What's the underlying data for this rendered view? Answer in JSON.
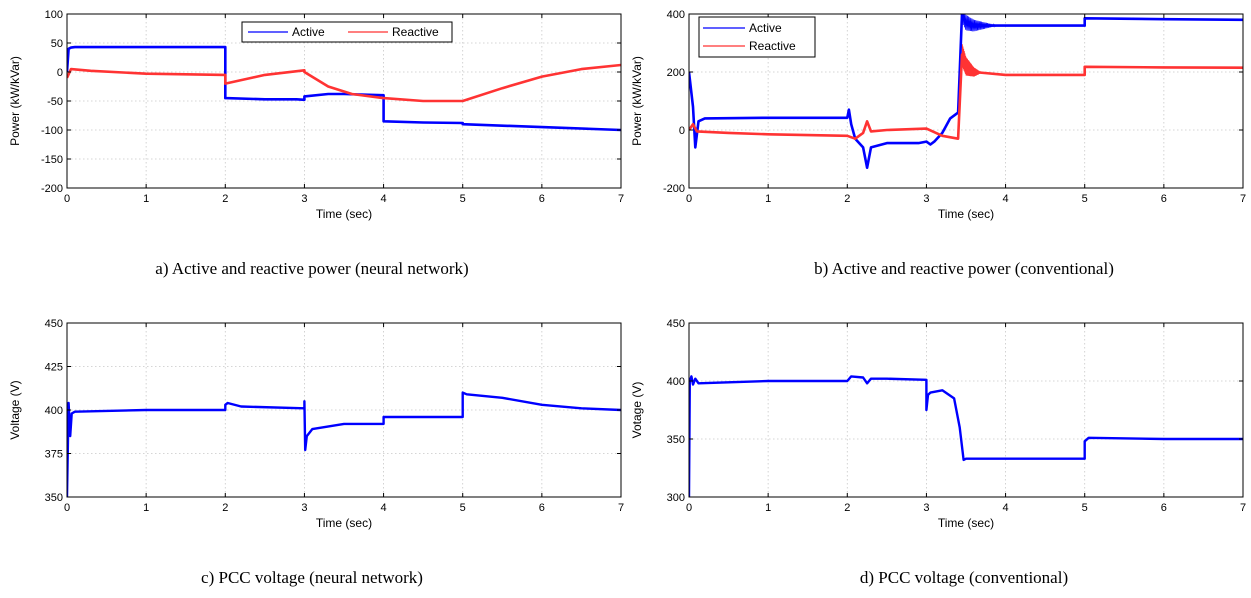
{
  "chart_data": [
    {
      "type": "line",
      "caption": "a) Active and reactive power (neural network)",
      "xlabel": "Time (sec)",
      "ylabel": "Power (kW/kVar)",
      "xlim": [
        0,
        7
      ],
      "ylim": [
        -200,
        100
      ],
      "xticks": [
        0,
        1,
        2,
        3,
        4,
        5,
        6,
        7
      ],
      "yticks": [
        100,
        50,
        0,
        -50,
        -100,
        -150,
        -200
      ],
      "grid": true,
      "legend": {
        "placement": "top-center-horizontal"
      },
      "series": [
        {
          "name": "Active",
          "color": "#0000ff",
          "x": [
            0,
            0.02,
            0.05,
            0.1,
            2.0,
            2.0,
            2.5,
            2.9,
            3.0,
            3.0,
            3.3,
            3.5,
            4.0,
            4.0,
            4.5,
            5.0,
            5.0,
            6.0,
            7.0
          ],
          "y": [
            0,
            40,
            42,
            43,
            43,
            -45,
            -47,
            -47,
            -48,
            -42,
            -38,
            -38,
            -40,
            -85,
            -87,
            -88,
            -90,
            -95,
            -100
          ]
        },
        {
          "name": "Reactive",
          "color": "#ff3333",
          "x": [
            0,
            0.05,
            0.3,
            1.0,
            2.0,
            2.0,
            2.5,
            3.0,
            3.0,
            3.3,
            3.6,
            4.0,
            4.5,
            5.0,
            5.5,
            6.0,
            6.5,
            7.0
          ],
          "y": [
            -10,
            5,
            2,
            -3,
            -5,
            -20,
            -5,
            3,
            0,
            -25,
            -38,
            -45,
            -50,
            -50,
            -28,
            -8,
            5,
            12
          ]
        }
      ]
    },
    {
      "type": "line",
      "caption": "b) Active and reactive power (conventional)",
      "xlabel": "Time (sec)",
      "ylabel": "Power (kW/kVar)",
      "xlim": [
        0,
        7
      ],
      "ylim": [
        -200,
        400
      ],
      "xticks": [
        0,
        1,
        2,
        3,
        4,
        5,
        6,
        7
      ],
      "yticks": [
        400,
        200,
        0,
        -200
      ],
      "grid": true,
      "legend": {
        "placement": "top-left-vertical"
      },
      "series": [
        {
          "name": "Active",
          "color": "#0000ff",
          "x": [
            0,
            0.05,
            0.08,
            0.12,
            0.2,
            1.0,
            2.0,
            2.02,
            2.05,
            2.1,
            2.2,
            2.25,
            2.3,
            2.5,
            2.9,
            3.0,
            3.05,
            3.1,
            3.2,
            3.3,
            3.4,
            3.45,
            3.5,
            3.6,
            4.0,
            5.0,
            5.0,
            6.0,
            7.0
          ],
          "y": [
            200,
            80,
            -60,
            30,
            40,
            42,
            42,
            70,
            20,
            -30,
            -60,
            -130,
            -60,
            -45,
            -45,
            -40,
            -50,
            -40,
            -10,
            40,
            60,
            400,
            370,
            360,
            360,
            360,
            385,
            382,
            380
          ],
          "oscillation": [
            {
              "from": 3.45,
              "to": 3.9,
              "amplitude": 30
            }
          ]
        },
        {
          "name": "Reactive",
          "color": "#ff3333",
          "x": [
            0,
            0.05,
            0.1,
            0.5,
            1.0,
            2.0,
            2.1,
            2.2,
            2.25,
            2.3,
            2.5,
            3.0,
            3.2,
            3.4,
            3.45,
            3.5,
            3.6,
            4.0,
            5.0,
            5.0,
            6.0,
            7.0
          ],
          "y": [
            0,
            20,
            -5,
            -10,
            -15,
            -20,
            -30,
            -10,
            30,
            -5,
            0,
            5,
            -20,
            -30,
            260,
            220,
            200,
            190,
            190,
            218,
            216,
            215
          ],
          "oscillation": [
            {
              "from": 3.45,
              "to": 3.7,
              "amplitude": 40
            }
          ]
        }
      ]
    },
    {
      "type": "line",
      "caption": "c) PCC voltage (neural network)",
      "xlabel": "Time (sec)",
      "ylabel": "Voltage (V)",
      "xlim": [
        0,
        7
      ],
      "ylim": [
        350,
        450
      ],
      "xticks": [
        0,
        1,
        2,
        3,
        4,
        5,
        6,
        7
      ],
      "yticks": [
        450,
        425,
        400,
        375,
        350
      ],
      "grid": true,
      "series": [
        {
          "name": "",
          "color": "#0000ff",
          "x": [
            0,
            0.02,
            0.04,
            0.06,
            0.1,
            1.0,
            2.0,
            2.0,
            2.03,
            2.2,
            3.0,
            3.0,
            3.01,
            3.03,
            3.1,
            3.5,
            4.0,
            4.0,
            5.0,
            5.0,
            5.05,
            5.5,
            6.0,
            6.5,
            7.0
          ],
          "y": [
            350,
            404,
            385,
            398,
            399,
            400,
            400,
            403,
            404,
            402,
            401,
            405,
            377,
            385,
            389,
            392,
            392,
            396,
            396,
            410,
            409,
            407,
            403,
            401,
            400
          ]
        }
      ]
    },
    {
      "type": "line",
      "caption": "d) PCC voltage (conventional)",
      "xlabel": "Time (sec)",
      "ylabel": "Votage (V)",
      "xlim": [
        0,
        7
      ],
      "ylim": [
        300,
        450
      ],
      "xticks": [
        0,
        1,
        2,
        3,
        4,
        5,
        6,
        7
      ],
      "yticks": [
        450,
        400,
        350,
        300
      ],
      "grid": true,
      "series": [
        {
          "name": "",
          "color": "#0000ff",
          "x": [
            0,
            0.01,
            0.03,
            0.05,
            0.08,
            0.12,
            1.0,
            2.0,
            2.05,
            2.2,
            2.25,
            2.3,
            2.5,
            3.0,
            3.0,
            3.02,
            3.05,
            3.2,
            3.35,
            3.42,
            3.47,
            3.5,
            4.0,
            5.0,
            5.0,
            5.05,
            6.0,
            7.0
          ],
          "y": [
            300,
            400,
            404,
            397,
            402,
            398,
            400,
            400,
            404,
            403,
            398,
            402,
            402,
            401,
            375,
            388,
            390,
            392,
            385,
            360,
            332,
            333,
            333,
            333,
            348,
            351,
            350,
            350
          ]
        }
      ]
    }
  ]
}
